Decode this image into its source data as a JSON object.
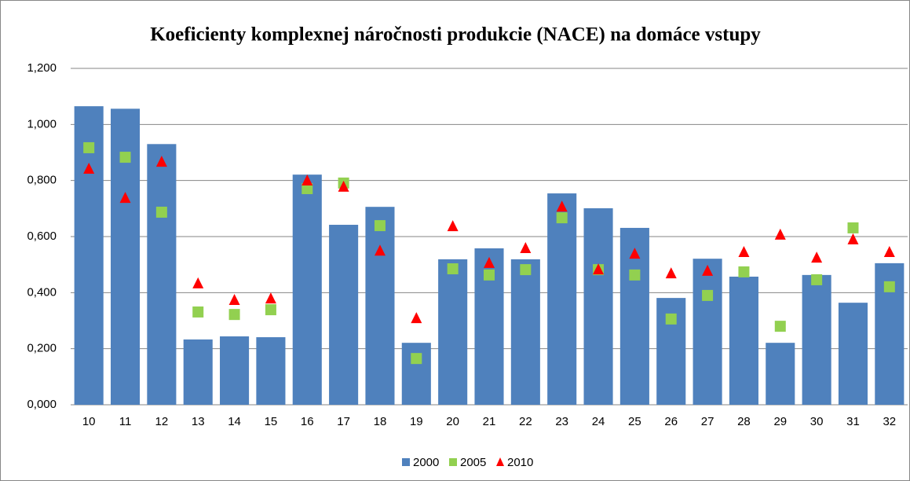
{
  "chart_data": {
    "type": "bar",
    "title": "Koeficienty komplexnej náročnosti produkcie (NACE) na domáce vstupy",
    "categories": [
      "10",
      "11",
      "12",
      "13",
      "14",
      "15",
      "16",
      "17",
      "18",
      "19",
      "20",
      "21",
      "22",
      "23",
      "24",
      "25",
      "26",
      "27",
      "28",
      "29",
      "30",
      "31",
      "32"
    ],
    "series": [
      {
        "name": "2000",
        "color": "#4f81bd",
        "marker": "bar",
        "values": [
          1.065,
          1.056,
          0.93,
          0.233,
          0.244,
          0.241,
          0.821,
          0.642,
          0.706,
          0.221,
          0.519,
          0.558,
          0.519,
          0.754,
          0.701,
          0.631,
          0.381,
          0.521,
          0.457,
          0.221,
          0.463,
          0.364,
          0.505
        ]
      },
      {
        "name": "2005",
        "color": "#92d050",
        "marker": "square",
        "values": [
          0.917,
          0.883,
          0.687,
          0.331,
          0.322,
          0.339,
          0.771,
          0.791,
          0.639,
          0.165,
          0.485,
          0.463,
          0.482,
          0.667,
          0.482,
          0.463,
          0.306,
          0.39,
          0.474,
          0.28,
          0.446,
          0.631,
          0.421
        ]
      },
      {
        "name": "2010",
        "color": "#ff0000",
        "marker": "triangle",
        "values": [
          0.841,
          0.737,
          0.866,
          0.432,
          0.373,
          0.378,
          0.799,
          0.777,
          0.549,
          0.308,
          0.636,
          0.505,
          0.558,
          0.706,
          0.482,
          0.538,
          0.468,
          0.477,
          0.544,
          0.606,
          0.524,
          0.589,
          0.544
        ]
      }
    ],
    "ylim": [
      0,
      1.2
    ],
    "yticks": [
      {
        "value": 0,
        "label": "0,000"
      },
      {
        "value": 0.2,
        "label": "0,200"
      },
      {
        "value": 0.4,
        "label": "0,400"
      },
      {
        "value": 0.6,
        "label": "0,600"
      },
      {
        "value": 0.8,
        "label": "0,800"
      },
      {
        "value": 1.0,
        "label": "1,000"
      },
      {
        "value": 1.2,
        "label": "1,200"
      }
    ],
    "grid": true,
    "legend": "bottom"
  }
}
